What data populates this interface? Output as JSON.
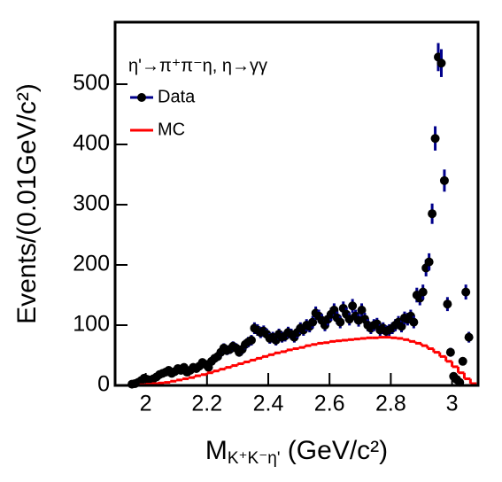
{
  "chart_data": {
    "type": "errorbar",
    "annotation": "η'→π⁺π⁻η, η→γγ",
    "y_label": "Events/(0.01GeV/c²)",
    "x_label": [
      "M",
      "K⁺K⁻η'",
      " (GeV/c²)"
    ],
    "xlim": [
      1.9,
      3.085
    ],
    "ylim": [
      0,
      603
    ],
    "xticks": [
      2,
      2.2,
      2.4,
      2.6,
      2.8,
      3
    ],
    "yticks": [
      0,
      100,
      200,
      300,
      400,
      500
    ],
    "series": [
      {
        "name": "Data",
        "type": "errorbar",
        "color": "#000000",
        "error_color": "#00008b",
        "x": [
          1.955,
          1.965,
          1.975,
          1.985,
          1.995,
          2.005,
          2.015,
          2.025,
          2.035,
          2.045,
          2.055,
          2.065,
          2.075,
          2.085,
          2.095,
          2.105,
          2.115,
          2.125,
          2.135,
          2.145,
          2.155,
          2.165,
          2.175,
          2.185,
          2.195,
          2.205,
          2.215,
          2.225,
          2.235,
          2.245,
          2.255,
          2.265,
          2.275,
          2.285,
          2.295,
          2.305,
          2.315,
          2.325,
          2.335,
          2.345,
          2.355,
          2.365,
          2.375,
          2.385,
          2.395,
          2.405,
          2.415,
          2.425,
          2.435,
          2.445,
          2.455,
          2.465,
          2.475,
          2.485,
          2.495,
          2.505,
          2.515,
          2.525,
          2.535,
          2.545,
          2.555,
          2.565,
          2.575,
          2.585,
          2.595,
          2.605,
          2.615,
          2.625,
          2.635,
          2.645,
          2.655,
          2.665,
          2.675,
          2.685,
          2.695,
          2.705,
          2.715,
          2.725,
          2.735,
          2.745,
          2.755,
          2.765,
          2.775,
          2.785,
          2.795,
          2.805,
          2.815,
          2.825,
          2.835,
          2.845,
          2.855,
          2.865,
          2.875,
          2.885,
          2.895,
          2.905,
          2.915,
          2.925,
          2.935,
          2.945,
          2.955,
          2.965,
          2.975,
          2.985,
          2.995,
          3.005,
          3.015,
          3.025,
          3.035,
          3.045,
          3.055
        ],
        "values": [
          2,
          3,
          5,
          8,
          12,
          10,
          9,
          11,
          14,
          18,
          20,
          22,
          25,
          20,
          23,
          28,
          25,
          30,
          22,
          25,
          30,
          28,
          32,
          38,
          35,
          30,
          40,
          45,
          48,
          55,
          62,
          58,
          60,
          65,
          62,
          55,
          60,
          68,
          72,
          75,
          95,
          92,
          88,
          90,
          85,
          78,
          80,
          75,
          85,
          80,
          82,
          88,
          85,
          80,
          88,
          95,
          92,
          100,
          98,
          105,
          120,
          115,
          108,
          100,
          110,
          118,
          125,
          112,
          105,
          128,
          118,
          110,
          132,
          115,
          108,
          125,
          110,
          100,
          95,
          100,
          102,
          92,
          95,
          90,
          92,
          95,
          100,
          105,
          98,
          112,
          110,
          115,
          105,
          150,
          145,
          155,
          195,
          205,
          285,
          410,
          545,
          535,
          340,
          135,
          55,
          15,
          10,
          5,
          40,
          155,
          80
        ],
        "errors": [
          1.4,
          1.7,
          2.2,
          2.8,
          3.5,
          3.2,
          3.0,
          3.3,
          3.7,
          4.2,
          4.5,
          4.7,
          5,
          4.5,
          4.8,
          5.3,
          5,
          5.5,
          4.7,
          5,
          5.5,
          5.3,
          5.7,
          6.2,
          5.9,
          5.5,
          6.3,
          6.7,
          6.9,
          7.4,
          7.9,
          7.6,
          7.7,
          8.1,
          7.9,
          7.4,
          7.7,
          8.2,
          8.5,
          8.7,
          9.7,
          9.6,
          9.4,
          9.5,
          9.2,
          8.8,
          8.9,
          8.7,
          9.2,
          8.9,
          9.1,
          9.4,
          9.2,
          8.9,
          9.4,
          9.7,
          9.6,
          10,
          9.9,
          10.2,
          11,
          10.7,
          10.4,
          10,
          10.5,
          10.9,
          11.2,
          10.6,
          10.2,
          11.3,
          10.9,
          10.5,
          11.5,
          10.7,
          10.4,
          11.2,
          10.5,
          10,
          9.7,
          10,
          10.1,
          9.6,
          9.7,
          9.5,
          9.6,
          9.7,
          10,
          10.2,
          9.9,
          10.6,
          10.5,
          10.7,
          10.2,
          12.2,
          12,
          12.4,
          14,
          14.3,
          16.9,
          20.2,
          23.3,
          23.1,
          18.4,
          11.6,
          7.4,
          3.9,
          3.2,
          2.2,
          6.3,
          12.4,
          8.9
        ]
      },
      {
        "name": "MC",
        "type": "histogram",
        "color": "#ff0000",
        "bins": [
          1.96,
          1.98,
          2.0,
          2.02,
          2.04,
          2.06,
          2.08,
          2.1,
          2.12,
          2.14,
          2.16,
          2.18,
          2.2,
          2.22,
          2.24,
          2.26,
          2.28,
          2.3,
          2.32,
          2.34,
          2.36,
          2.38,
          2.4,
          2.42,
          2.44,
          2.46,
          2.48,
          2.5,
          2.52,
          2.54,
          2.56,
          2.58,
          2.6,
          2.62,
          2.64,
          2.66,
          2.68,
          2.7,
          2.72,
          2.74,
          2.76,
          2.78,
          2.8,
          2.82,
          2.84,
          2.86,
          2.88,
          2.9,
          2.92,
          2.94,
          2.96,
          2.98,
          3.0,
          3.02,
          3.04,
          3.06,
          3.08
        ],
        "values": [
          0,
          1,
          2,
          3,
          4,
          5,
          7,
          9,
          11,
          13,
          16,
          18,
          21,
          24,
          27,
          30,
          33,
          36,
          39,
          42,
          45,
          48,
          51,
          54,
          56,
          59,
          61,
          63,
          66,
          68,
          70,
          71,
          73,
          74,
          75,
          76,
          77,
          78,
          79,
          79,
          80,
          80,
          79,
          78,
          76,
          73,
          70,
          66,
          61,
          55,
          48,
          40,
          31,
          21,
          11,
          3
        ]
      }
    ]
  }
}
